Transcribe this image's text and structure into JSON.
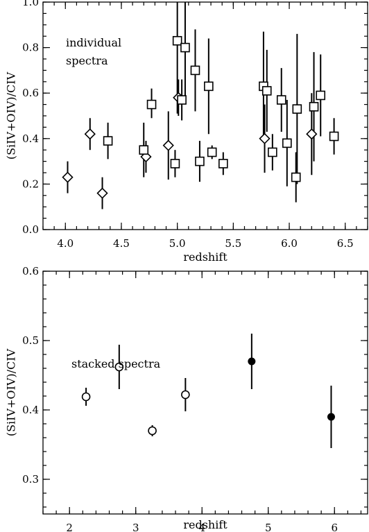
{
  "chart_data": [
    {
      "type": "scatter",
      "annotation": [
        "individual",
        "spectra"
      ],
      "xlabel": "redshift",
      "ylabel": "(SiIV+OIV)/CIV",
      "xlim": [
        3.8,
        6.7
      ],
      "ylim": [
        0.0,
        1.0
      ],
      "xticks": [
        4.0,
        4.5,
        5.0,
        5.5,
        6.0,
        6.5
      ],
      "xtick_labels": [
        "4.0",
        "4.5",
        "5.0",
        "5.5",
        "6.0",
        "6.5"
      ],
      "yticks": [
        0.0,
        0.2,
        0.4,
        0.6,
        0.8,
        1.0
      ],
      "ytick_labels": [
        "0.0",
        "0.2",
        "0.4",
        "0.6",
        "0.8",
        "1.0"
      ],
      "grid": false,
      "series": [
        {
          "marker": "diamond",
          "points": [
            {
              "x": 4.02,
              "y": 0.23,
              "ylo": 0.16,
              "yhi": 0.3
            },
            {
              "x": 4.22,
              "y": 0.42,
              "ylo": 0.35,
              "yhi": 0.49
            },
            {
              "x": 4.33,
              "y": 0.16,
              "ylo": 0.09,
              "yhi": 0.23
            },
            {
              "x": 4.72,
              "y": 0.32,
              "ylo": 0.25,
              "yhi": 0.39
            },
            {
              "x": 4.92,
              "y": 0.37,
              "ylo": 0.22,
              "yhi": 0.52
            },
            {
              "x": 5.01,
              "y": 0.58,
              "ylo": 0.5,
              "yhi": 0.66
            },
            {
              "x": 5.78,
              "y": 0.4,
              "ylo": 0.25,
              "yhi": 0.55
            },
            {
              "x": 6.2,
              "y": 0.42,
              "ylo": 0.24,
              "yhi": 0.6
            }
          ]
        },
        {
          "marker": "square",
          "points": [
            {
              "x": 4.38,
              "y": 0.39,
              "ylo": 0.31,
              "yhi": 0.47
            },
            {
              "x": 4.7,
              "y": 0.35,
              "ylo": 0.23,
              "yhi": 0.47
            },
            {
              "x": 4.77,
              "y": 0.55,
              "ylo": 0.49,
              "yhi": 0.62
            },
            {
              "x": 4.98,
              "y": 0.29,
              "ylo": 0.23,
              "yhi": 0.35
            },
            {
              "x": 5.0,
              "y": 0.83,
              "ylo": 0.51,
              "yhi": 1.0
            },
            {
              "x": 5.04,
              "y": 0.57,
              "ylo": 0.48,
              "yhi": 0.66
            },
            {
              "x": 5.07,
              "y": 0.8,
              "ylo": 0.58,
              "yhi": 1.0
            },
            {
              "x": 5.16,
              "y": 0.7,
              "ylo": 0.52,
              "yhi": 0.88
            },
            {
              "x": 5.2,
              "y": 0.3,
              "ylo": 0.21,
              "yhi": 0.39
            },
            {
              "x": 5.28,
              "y": 0.63,
              "ylo": 0.42,
              "yhi": 0.84
            },
            {
              "x": 5.31,
              "y": 0.34,
              "ylo": 0.31,
              "yhi": 0.37
            },
            {
              "x": 5.41,
              "y": 0.29,
              "ylo": 0.24,
              "yhi": 0.34
            },
            {
              "x": 5.77,
              "y": 0.63,
              "ylo": 0.39,
              "yhi": 0.87
            },
            {
              "x": 5.8,
              "y": 0.61,
              "ylo": 0.43,
              "yhi": 0.79
            },
            {
              "x": 5.85,
              "y": 0.34,
              "ylo": 0.26,
              "yhi": 0.42
            },
            {
              "x": 5.93,
              "y": 0.57,
              "ylo": 0.43,
              "yhi": 0.71
            },
            {
              "x": 5.98,
              "y": 0.38,
              "ylo": 0.19,
              "yhi": 0.57
            },
            {
              "x": 6.06,
              "y": 0.23,
              "ylo": 0.12,
              "yhi": 0.34
            },
            {
              "x": 6.07,
              "y": 0.53,
              "ylo": 0.2,
              "yhi": 0.86
            },
            {
              "x": 6.22,
              "y": 0.54,
              "ylo": 0.3,
              "yhi": 0.78
            },
            {
              "x": 6.28,
              "y": 0.59,
              "ylo": 0.41,
              "yhi": 0.77
            },
            {
              "x": 6.4,
              "y": 0.41,
              "ylo": 0.33,
              "yhi": 0.49
            }
          ]
        }
      ]
    },
    {
      "type": "scatter",
      "annotation": [
        "stacked spectra"
      ],
      "xlabel": "redshift",
      "ylabel": "(SiIV+OIV)/CIV",
      "xlim": [
        1.6,
        6.5
      ],
      "ylim": [
        0.25,
        0.6
      ],
      "xticks": [
        2,
        3,
        4,
        5,
        6
      ],
      "xtick_labels": [
        "2",
        "3",
        "4",
        "5",
        "6"
      ],
      "yticks": [
        0.3,
        0.4,
        0.5,
        0.6
      ],
      "ytick_labels": [
        "0.3",
        "0.4",
        "0.5",
        "0.6"
      ],
      "grid": false,
      "series": [
        {
          "marker": "open-circle",
          "points": [
            {
              "x": 2.25,
              "y": 0.419,
              "ylo": 0.406,
              "yhi": 0.432
            },
            {
              "x": 2.75,
              "y": 0.462,
              "ylo": 0.43,
              "yhi": 0.494
            },
            {
              "x": 3.25,
              "y": 0.37,
              "ylo": 0.362,
              "yhi": 0.378
            },
            {
              "x": 3.75,
              "y": 0.422,
              "ylo": 0.398,
              "yhi": 0.446
            }
          ]
        },
        {
          "marker": "filled-circle",
          "points": [
            {
              "x": 4.75,
              "y": 0.47,
              "ylo": 0.43,
              "yhi": 0.51
            },
            {
              "x": 5.95,
              "y": 0.39,
              "ylo": 0.345,
              "yhi": 0.435
            }
          ]
        }
      ]
    }
  ]
}
